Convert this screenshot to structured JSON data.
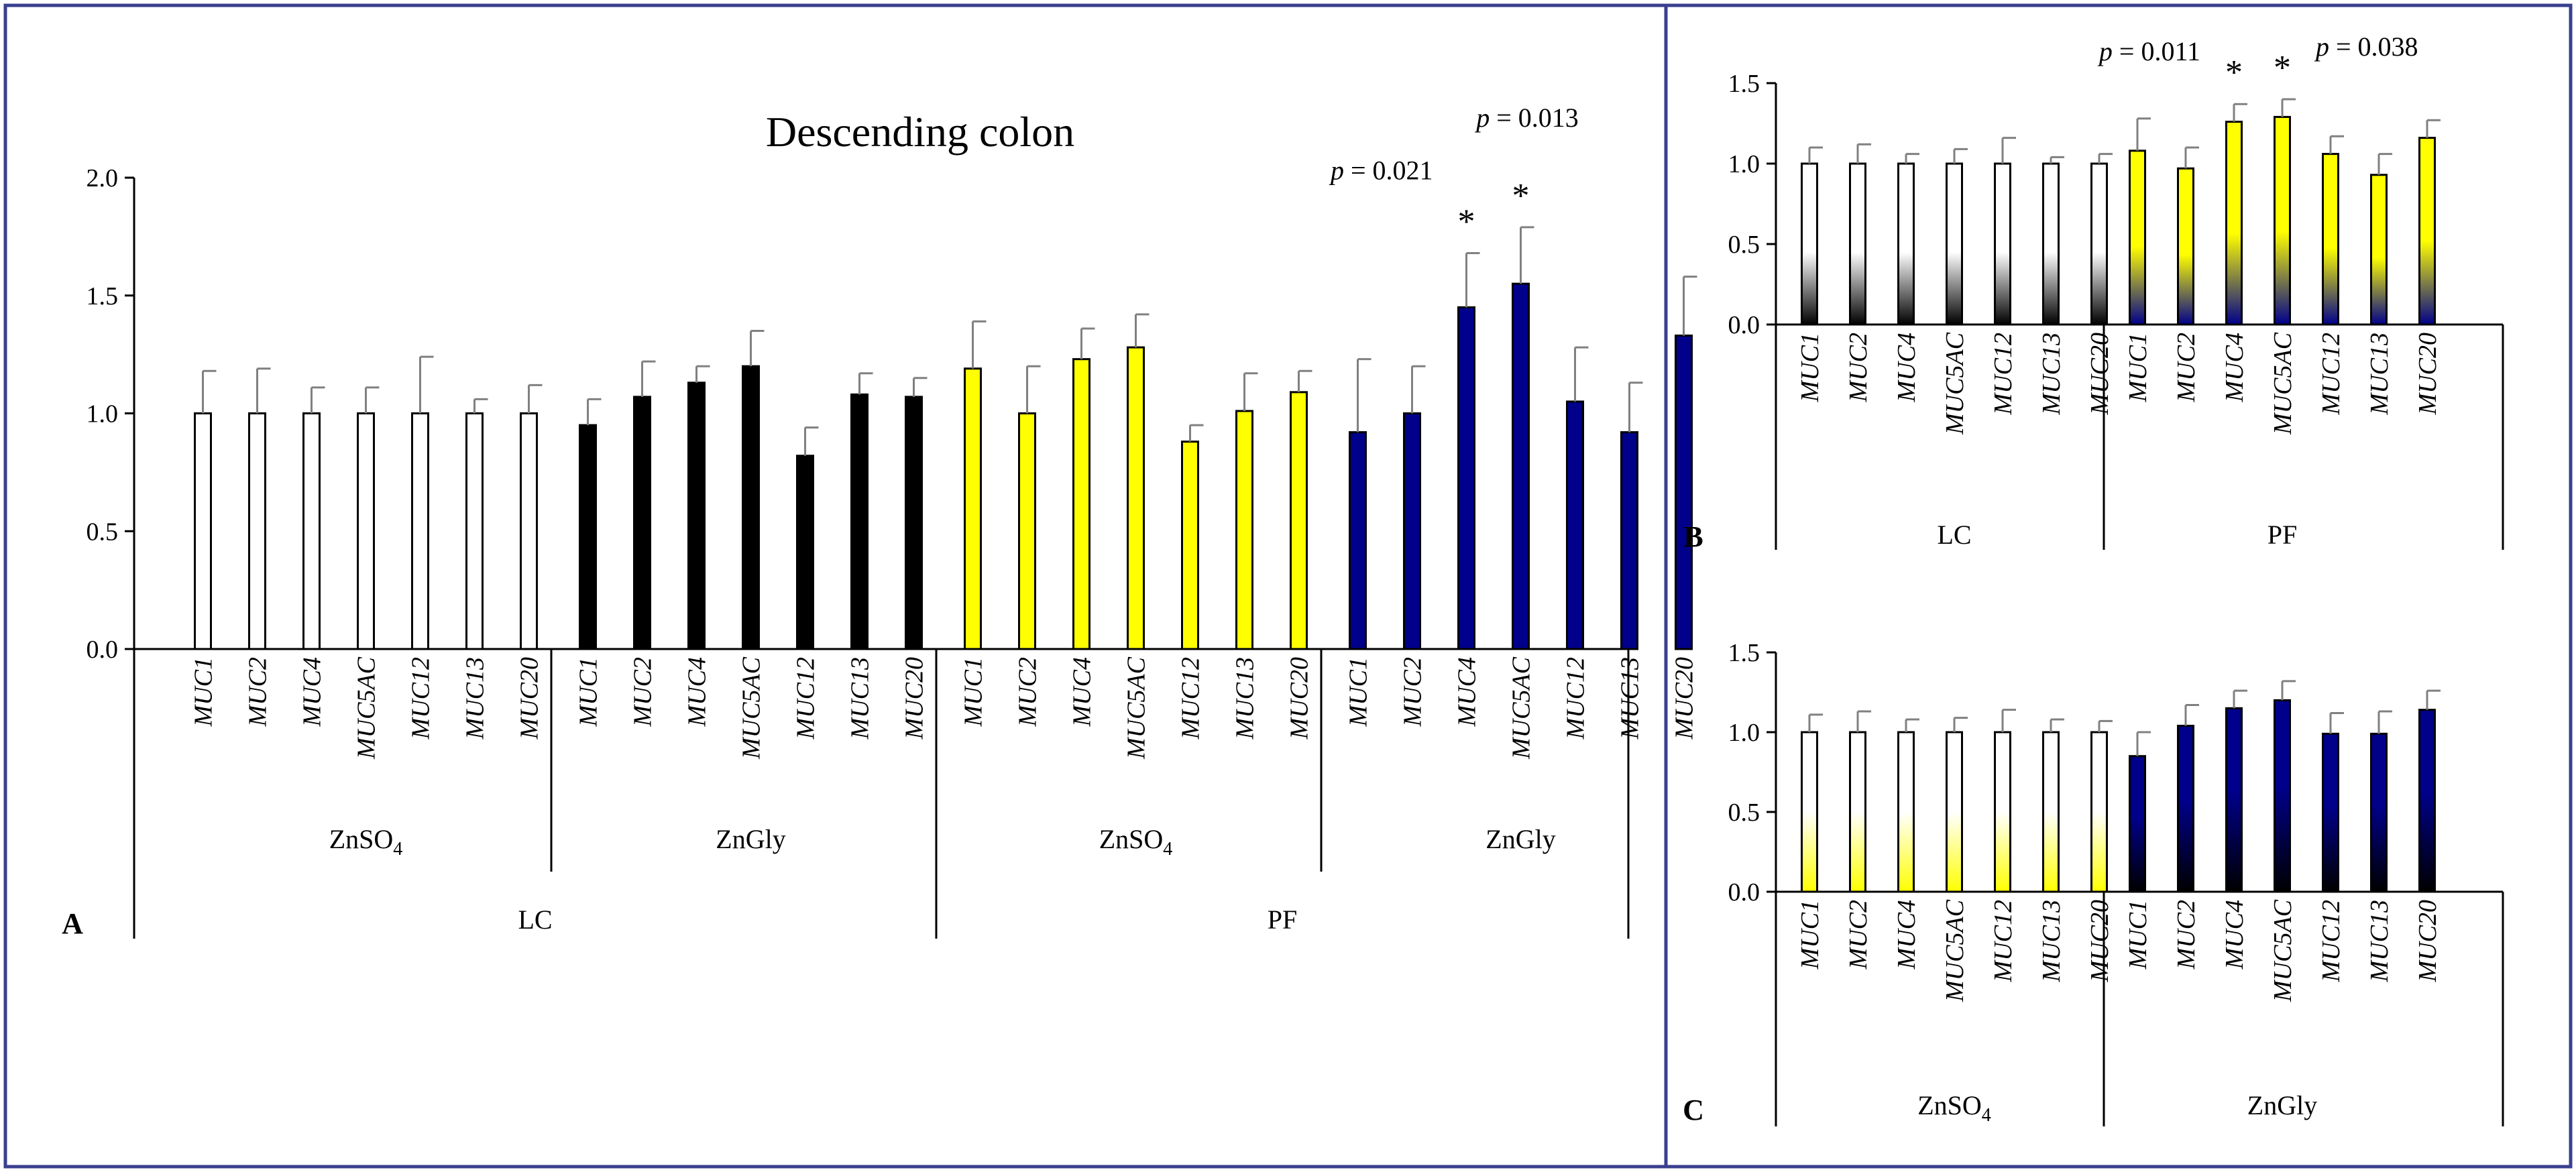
{
  "colors": {
    "frame": "#3a3f8f",
    "white_bar": "#ffffff",
    "black_bar": "#000000",
    "yellow_bar": "#ffff00",
    "blue_bar": "#00008b",
    "error_bar": "#808080"
  },
  "chart_data": [
    {
      "panel": "A",
      "type": "bar",
      "title": "Descending colon",
      "ylim": [
        0,
        2.0
      ],
      "yticks": [
        "0.0",
        "0.5",
        "1.0",
        "1.5",
        "2.0"
      ],
      "categories": [
        "MUC1",
        "MUC2",
        "MUC4",
        "MUC5AC",
        "MUC12",
        "MUC13",
        "MUC20"
      ],
      "groups": [
        {
          "label_main": "ZnSO",
          "label_sub": "4",
          "outer": "LC",
          "fill": "white",
          "values": [
            1.0,
            1.0,
            1.0,
            1.0,
            1.0,
            1.0,
            1.0
          ],
          "errors": [
            0.18,
            0.19,
            0.11,
            0.11,
            0.24,
            0.06,
            0.12
          ]
        },
        {
          "label_main": "ZnGly",
          "label_sub": "",
          "outer": "LC",
          "fill": "black",
          "values": [
            0.95,
            1.07,
            1.13,
            1.2,
            0.82,
            1.08,
            1.07
          ],
          "errors": [
            0.11,
            0.15,
            0.07,
            0.15,
            0.12,
            0.09,
            0.08
          ]
        },
        {
          "label_main": "ZnSO",
          "label_sub": "4",
          "outer": "PF",
          "fill": "yellow",
          "values": [
            1.19,
            1.0,
            1.23,
            1.28,
            0.88,
            1.01,
            1.09
          ],
          "errors": [
            0.2,
            0.2,
            0.13,
            0.14,
            0.07,
            0.16,
            0.09
          ]
        },
        {
          "label_main": "ZnGly",
          "label_sub": "",
          "outer": "PF",
          "fill": "blue",
          "values": [
            0.92,
            1.0,
            1.45,
            1.55,
            1.05,
            0.92,
            1.33
          ],
          "errors": [
            0.31,
            0.2,
            0.23,
            0.24,
            0.23,
            0.21,
            0.25
          ]
        }
      ],
      "outer_groups": [
        "LC",
        "PF"
      ],
      "annotations": [
        {
          "text": "p = 0.021",
          "group": 3,
          "bar": 2,
          "star": true
        },
        {
          "text": "p = 0.013",
          "group": 3,
          "bar": 3,
          "star": true
        }
      ]
    },
    {
      "panel": "B",
      "type": "bar",
      "ylim": [
        0,
        1.5
      ],
      "yticks": [
        "0.0",
        "0.5",
        "1.0",
        "1.5"
      ],
      "categories": [
        "MUC1",
        "MUC2",
        "MUC4",
        "MUC5AC",
        "MUC12",
        "MUC13",
        "MUC20"
      ],
      "groups": [
        {
          "label_main": "LC",
          "label_sub": "",
          "fill": "white-black",
          "values": [
            1.0,
            1.0,
            1.0,
            1.0,
            1.0,
            1.0,
            1.0
          ],
          "errors": [
            0.1,
            0.12,
            0.06,
            0.09,
            0.16,
            0.04,
            0.06
          ]
        },
        {
          "label_main": "PF",
          "label_sub": "",
          "fill": "yellow-blue",
          "values": [
            1.08,
            0.97,
            1.26,
            1.29,
            1.06,
            0.93,
            1.16
          ],
          "errors": [
            0.2,
            0.13,
            0.11,
            0.11,
            0.11,
            0.13,
            0.11
          ]
        }
      ],
      "annotations": [
        {
          "text": "p = 0.011",
          "group": 1,
          "bar": 2,
          "star": true
        },
        {
          "text": "p = 0.038",
          "group": 1,
          "bar": 3,
          "star": true
        }
      ]
    },
    {
      "panel": "C",
      "type": "bar",
      "ylim": [
        0,
        1.5
      ],
      "yticks": [
        "0.0",
        "0.5",
        "1.0",
        "1.5"
      ],
      "categories": [
        "MUC1",
        "MUC2",
        "MUC4",
        "MUC5AC",
        "MUC12",
        "MUC13",
        "MUC20"
      ],
      "groups": [
        {
          "label_main": "ZnSO",
          "label_sub": "4",
          "fill": "white-yellow",
          "values": [
            1.0,
            1.0,
            1.0,
            1.0,
            1.0,
            1.0,
            1.0
          ],
          "errors": [
            0.11,
            0.13,
            0.08,
            0.09,
            0.14,
            0.08,
            0.07
          ]
        },
        {
          "label_main": "ZnGly",
          "label_sub": "",
          "fill": "blue-black",
          "values": [
            0.85,
            1.04,
            1.15,
            1.2,
            0.99,
            0.99,
            1.14
          ],
          "errors": [
            0.15,
            0.13,
            0.11,
            0.12,
            0.13,
            0.14,
            0.12
          ]
        }
      ],
      "annotations": []
    }
  ]
}
